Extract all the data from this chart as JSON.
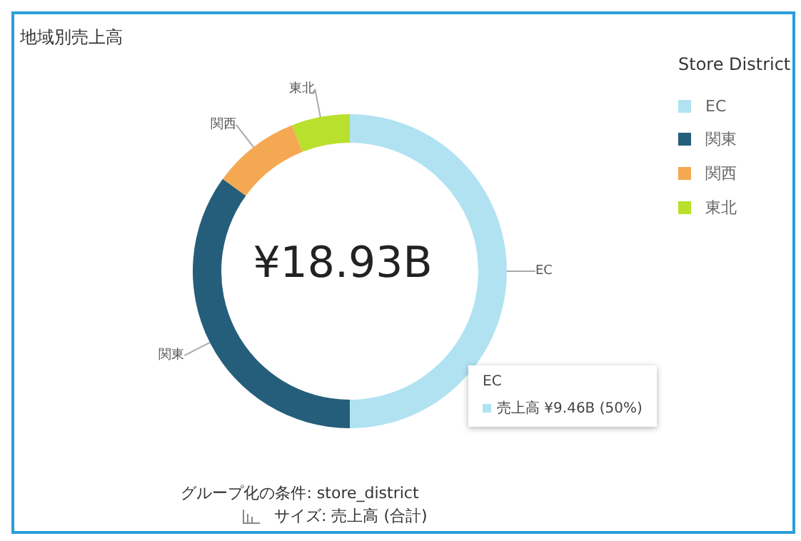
{
  "chart_data": {
    "type": "donut",
    "title": "地域別売上高",
    "legend_title": "Store District",
    "categories": [
      "EC",
      "関東",
      "関西",
      "東北"
    ],
    "values": [
      50,
      35,
      9,
      6
    ],
    "colors": [
      "#b0e2f2",
      "#255e7a",
      "#f5a852",
      "#b8e02c"
    ],
    "legend": "top right",
    "annotations": [
      "¥18.93B",
      "EC",
      "売上高 ¥9.46B (50%)",
      "グループ化の条件: store_district",
      "サイズ: 売上高 (合計)"
    ]
  }
}
